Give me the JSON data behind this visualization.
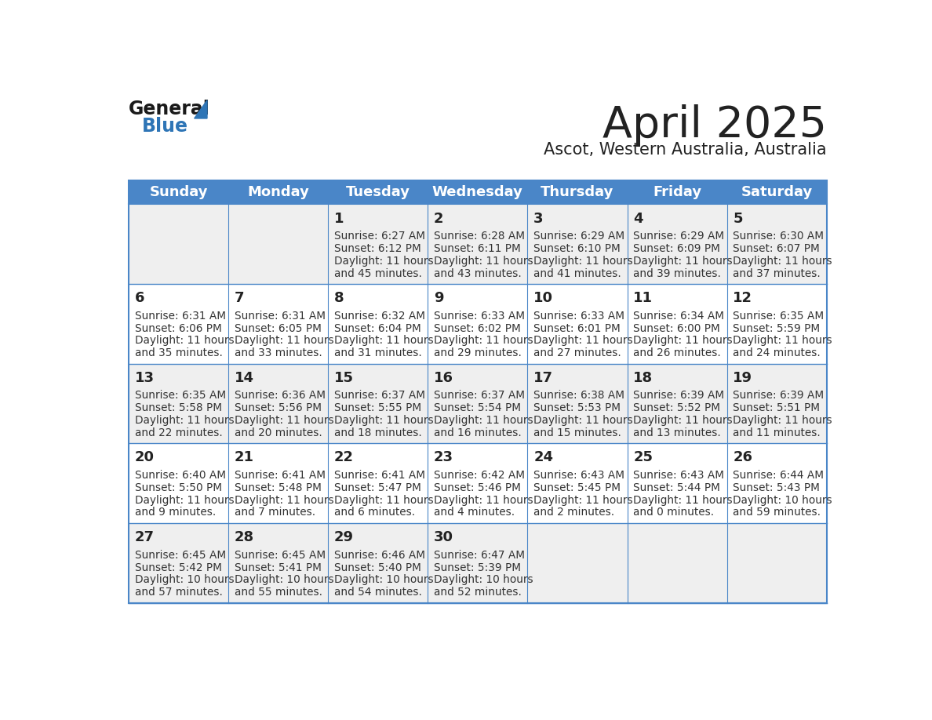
{
  "title": "April 2025",
  "subtitle": "Ascot, Western Australia, Australia",
  "header_bg": "#4a86c8",
  "header_text_color": "#FFFFFF",
  "days_of_week": [
    "Sunday",
    "Monday",
    "Tuesday",
    "Wednesday",
    "Thursday",
    "Friday",
    "Saturday"
  ],
  "row_bg_colors": [
    "#EFEFEF",
    "#FFFFFF",
    "#EFEFEF",
    "#FFFFFF",
    "#EFEFEF"
  ],
  "cell_border_color": "#4a86c8",
  "text_color": "#222222",
  "day_num_color": "#222222",
  "small_text_color": "#333333",
  "calendar": [
    [
      {
        "day": "",
        "sunrise": "",
        "sunset": "",
        "daylight_h": "",
        "daylight_m": ""
      },
      {
        "day": "",
        "sunrise": "",
        "sunset": "",
        "daylight_h": "",
        "daylight_m": ""
      },
      {
        "day": "1",
        "sunrise": "6:27 AM",
        "sunset": "6:12 PM",
        "daylight_h": "11 hours",
        "daylight_m": "and 45 minutes."
      },
      {
        "day": "2",
        "sunrise": "6:28 AM",
        "sunset": "6:11 PM",
        "daylight_h": "11 hours",
        "daylight_m": "and 43 minutes."
      },
      {
        "day": "3",
        "sunrise": "6:29 AM",
        "sunset": "6:10 PM",
        "daylight_h": "11 hours",
        "daylight_m": "and 41 minutes."
      },
      {
        "day": "4",
        "sunrise": "6:29 AM",
        "sunset": "6:09 PM",
        "daylight_h": "11 hours",
        "daylight_m": "and 39 minutes."
      },
      {
        "day": "5",
        "sunrise": "6:30 AM",
        "sunset": "6:07 PM",
        "daylight_h": "11 hours",
        "daylight_m": "and 37 minutes."
      }
    ],
    [
      {
        "day": "6",
        "sunrise": "6:31 AM",
        "sunset": "6:06 PM",
        "daylight_h": "11 hours",
        "daylight_m": "and 35 minutes."
      },
      {
        "day": "7",
        "sunrise": "6:31 AM",
        "sunset": "6:05 PM",
        "daylight_h": "11 hours",
        "daylight_m": "and 33 minutes."
      },
      {
        "day": "8",
        "sunrise": "6:32 AM",
        "sunset": "6:04 PM",
        "daylight_h": "11 hours",
        "daylight_m": "and 31 minutes."
      },
      {
        "day": "9",
        "sunrise": "6:33 AM",
        "sunset": "6:02 PM",
        "daylight_h": "11 hours",
        "daylight_m": "and 29 minutes."
      },
      {
        "day": "10",
        "sunrise": "6:33 AM",
        "sunset": "6:01 PM",
        "daylight_h": "11 hours",
        "daylight_m": "and 27 minutes."
      },
      {
        "day": "11",
        "sunrise": "6:34 AM",
        "sunset": "6:00 PM",
        "daylight_h": "11 hours",
        "daylight_m": "and 26 minutes."
      },
      {
        "day": "12",
        "sunrise": "6:35 AM",
        "sunset": "5:59 PM",
        "daylight_h": "11 hours",
        "daylight_m": "and 24 minutes."
      }
    ],
    [
      {
        "day": "13",
        "sunrise": "6:35 AM",
        "sunset": "5:58 PM",
        "daylight_h": "11 hours",
        "daylight_m": "and 22 minutes."
      },
      {
        "day": "14",
        "sunrise": "6:36 AM",
        "sunset": "5:56 PM",
        "daylight_h": "11 hours",
        "daylight_m": "and 20 minutes."
      },
      {
        "day": "15",
        "sunrise": "6:37 AM",
        "sunset": "5:55 PM",
        "daylight_h": "11 hours",
        "daylight_m": "and 18 minutes."
      },
      {
        "day": "16",
        "sunrise": "6:37 AM",
        "sunset": "5:54 PM",
        "daylight_h": "11 hours",
        "daylight_m": "and 16 minutes."
      },
      {
        "day": "17",
        "sunrise": "6:38 AM",
        "sunset": "5:53 PM",
        "daylight_h": "11 hours",
        "daylight_m": "and 15 minutes."
      },
      {
        "day": "18",
        "sunrise": "6:39 AM",
        "sunset": "5:52 PM",
        "daylight_h": "11 hours",
        "daylight_m": "and 13 minutes."
      },
      {
        "day": "19",
        "sunrise": "6:39 AM",
        "sunset": "5:51 PM",
        "daylight_h": "11 hours",
        "daylight_m": "and 11 minutes."
      }
    ],
    [
      {
        "day": "20",
        "sunrise": "6:40 AM",
        "sunset": "5:50 PM",
        "daylight_h": "11 hours",
        "daylight_m": "and 9 minutes."
      },
      {
        "day": "21",
        "sunrise": "6:41 AM",
        "sunset": "5:48 PM",
        "daylight_h": "11 hours",
        "daylight_m": "and 7 minutes."
      },
      {
        "day": "22",
        "sunrise": "6:41 AM",
        "sunset": "5:47 PM",
        "daylight_h": "11 hours",
        "daylight_m": "and 6 minutes."
      },
      {
        "day": "23",
        "sunrise": "6:42 AM",
        "sunset": "5:46 PM",
        "daylight_h": "11 hours",
        "daylight_m": "and 4 minutes."
      },
      {
        "day": "24",
        "sunrise": "6:43 AM",
        "sunset": "5:45 PM",
        "daylight_h": "11 hours",
        "daylight_m": "and 2 minutes."
      },
      {
        "day": "25",
        "sunrise": "6:43 AM",
        "sunset": "5:44 PM",
        "daylight_h": "11 hours",
        "daylight_m": "and 0 minutes."
      },
      {
        "day": "26",
        "sunrise": "6:44 AM",
        "sunset": "5:43 PM",
        "daylight_h": "10 hours",
        "daylight_m": "and 59 minutes."
      }
    ],
    [
      {
        "day": "27",
        "sunrise": "6:45 AM",
        "sunset": "5:42 PM",
        "daylight_h": "10 hours",
        "daylight_m": "and 57 minutes."
      },
      {
        "day": "28",
        "sunrise": "6:45 AM",
        "sunset": "5:41 PM",
        "daylight_h": "10 hours",
        "daylight_m": "and 55 minutes."
      },
      {
        "day": "29",
        "sunrise": "6:46 AM",
        "sunset": "5:40 PM",
        "daylight_h": "10 hours",
        "daylight_m": "and 54 minutes."
      },
      {
        "day": "30",
        "sunrise": "6:47 AM",
        "sunset": "5:39 PM",
        "daylight_h": "10 hours",
        "daylight_m": "and 52 minutes."
      },
      {
        "day": "",
        "sunrise": "",
        "sunset": "",
        "daylight_h": "",
        "daylight_m": ""
      },
      {
        "day": "",
        "sunrise": "",
        "sunset": "",
        "daylight_h": "",
        "daylight_m": ""
      },
      {
        "day": "",
        "sunrise": "",
        "sunset": "",
        "daylight_h": "",
        "daylight_m": ""
      }
    ]
  ],
  "logo_general_color": "#1a1a1a",
  "logo_blue_color": "#2E75B6",
  "logo_triangle_color": "#2E75B6"
}
